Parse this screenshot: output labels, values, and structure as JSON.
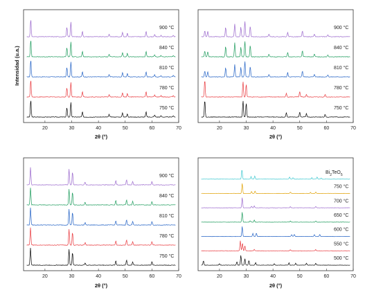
{
  "chart_data": [
    {
      "type": "line",
      "panel": "top-left",
      "xlabel": "2θ (°)",
      "ylabel": "Intensidad (u.a.)",
      "xlim": [
        12,
        70
      ],
      "xticks": [
        20,
        30,
        40,
        50,
        60,
        70
      ],
      "series": [
        {
          "name": "750 °C",
          "color": "#000000",
          "peaks": [
            [
              14.7,
              1.0
            ],
            [
              28.2,
              0.55
            ],
            [
              29.7,
              0.85
            ],
            [
              34.0,
              0.3
            ],
            [
              44.0,
              0.15
            ],
            [
              49.0,
              0.25
            ],
            [
              50.8,
              0.2
            ],
            [
              57.8,
              0.3
            ],
            [
              61.0,
              0.12
            ],
            [
              63.4,
              0.08
            ],
            [
              68.0,
              0.08
            ]
          ]
        },
        {
          "name": "780 °C",
          "color": "#e8363b",
          "peaks": [
            [
              14.7,
              1.0
            ],
            [
              28.2,
              0.55
            ],
            [
              29.7,
              0.85
            ],
            [
              34.0,
              0.3
            ],
            [
              44.0,
              0.15
            ],
            [
              49.0,
              0.25
            ],
            [
              50.8,
              0.2
            ],
            [
              57.8,
              0.3
            ],
            [
              61.0,
              0.12
            ],
            [
              63.4,
              0.08
            ],
            [
              68.0,
              0.08
            ]
          ]
        },
        {
          "name": "810 °C",
          "color": "#1f5fc4",
          "peaks": [
            [
              14.7,
              1.0
            ],
            [
              28.2,
              0.55
            ],
            [
              29.7,
              0.85
            ],
            [
              34.0,
              0.3
            ],
            [
              44.0,
              0.15
            ],
            [
              49.0,
              0.25
            ],
            [
              50.8,
              0.2
            ],
            [
              57.8,
              0.3
            ],
            [
              61.0,
              0.12
            ],
            [
              63.4,
              0.08
            ],
            [
              68.0,
              0.08
            ]
          ]
        },
        {
          "name": "840 °C",
          "color": "#1a9a5a",
          "peaks": [
            [
              14.7,
              1.0
            ],
            [
              28.2,
              0.55
            ],
            [
              29.7,
              0.85
            ],
            [
              34.0,
              0.3
            ],
            [
              44.0,
              0.15
            ],
            [
              49.0,
              0.25
            ],
            [
              50.8,
              0.2
            ],
            [
              57.8,
              0.3
            ],
            [
              61.0,
              0.12
            ],
            [
              63.4,
              0.08
            ],
            [
              68.0,
              0.08
            ]
          ]
        },
        {
          "name": "900 °C",
          "color": "#9966cc",
          "peaks": [
            [
              14.7,
              1.0
            ],
            [
              28.2,
              0.55
            ],
            [
              29.7,
              0.85
            ],
            [
              34.0,
              0.3
            ],
            [
              44.0,
              0.15
            ],
            [
              49.0,
              0.25
            ],
            [
              50.8,
              0.2
            ],
            [
              57.8,
              0.3
            ],
            [
              61.0,
              0.12
            ],
            [
              63.4,
              0.08
            ],
            [
              68.0,
              0.08
            ]
          ]
        }
      ]
    },
    {
      "type": "line",
      "panel": "top-right",
      "xlabel": "2θ (°)",
      "ylabel": "",
      "xlim": [
        12,
        70
      ],
      "xticks": [
        20,
        30,
        40,
        50,
        60,
        70
      ],
      "series": [
        {
          "name": "750 °C",
          "color": "#000000",
          "peaks": [
            [
              14.5,
              1.0
            ],
            [
              28.8,
              0.95
            ],
            [
              30.0,
              0.8
            ],
            [
              45.0,
              0.25
            ],
            [
              50.0,
              0.3
            ],
            [
              52.5,
              0.2
            ],
            [
              59.5,
              0.15
            ]
          ]
        },
        {
          "name": "780 °C",
          "color": "#e8363b",
          "peaks": [
            [
              14.5,
              1.0
            ],
            [
              28.8,
              0.9
            ],
            [
              30.0,
              0.75
            ],
            [
              45.0,
              0.2
            ],
            [
              50.0,
              0.3
            ],
            [
              52.5,
              0.15
            ],
            [
              59.5,
              0.15
            ]
          ]
        },
        {
          "name": "810 °C",
          "color": "#1f5fc4",
          "peaks": [
            [
              14.5,
              0.35
            ],
            [
              15.6,
              0.3
            ],
            [
              22.3,
              0.55
            ],
            [
              25.7,
              0.7
            ],
            [
              28.0,
              0.55
            ],
            [
              29.5,
              0.9
            ],
            [
              31.5,
              0.6
            ],
            [
              38.5,
              0.15
            ],
            [
              45.5,
              0.25
            ],
            [
              51.0,
              0.35
            ],
            [
              55.5,
              0.15
            ],
            [
              60.5,
              0.12
            ]
          ]
        },
        {
          "name": "840 °C",
          "color": "#1a9a5a",
          "peaks": [
            [
              14.5,
              0.35
            ],
            [
              15.6,
              0.3
            ],
            [
              22.3,
              0.6
            ],
            [
              25.7,
              0.8
            ],
            [
              28.0,
              0.55
            ],
            [
              29.5,
              0.9
            ],
            [
              31.5,
              0.65
            ],
            [
              38.5,
              0.15
            ],
            [
              45.5,
              0.25
            ],
            [
              51.0,
              0.35
            ],
            [
              55.5,
              0.15
            ],
            [
              60.5,
              0.12
            ]
          ]
        },
        {
          "name": "900 °C",
          "color": "#9966cc",
          "peaks": [
            [
              14.5,
              0.35
            ],
            [
              15.6,
              0.3
            ],
            [
              22.3,
              0.55
            ],
            [
              25.7,
              0.75
            ],
            [
              28.0,
              0.55
            ],
            [
              29.5,
              0.9
            ],
            [
              31.5,
              0.6
            ],
            [
              38.5,
              0.15
            ],
            [
              45.5,
              0.25
            ],
            [
              51.0,
              0.35
            ],
            [
              55.5,
              0.15
            ],
            [
              60.5,
              0.12
            ]
          ]
        }
      ]
    },
    {
      "type": "line",
      "panel": "bottom-left",
      "xlabel": "2θ (°)",
      "ylabel": "",
      "xlim": [
        12,
        70
      ],
      "xticks": [
        20,
        30,
        40,
        50,
        60,
        70
      ],
      "series": [
        {
          "name": "750 °C",
          "color": "#000000",
          "peaks": [
            [
              14.6,
              1.0
            ],
            [
              29.0,
              0.9
            ],
            [
              30.3,
              0.75
            ],
            [
              35.0,
              0.15
            ],
            [
              46.5,
              0.25
            ],
            [
              50.5,
              0.3
            ],
            [
              52.8,
              0.2
            ],
            [
              60.0,
              0.2
            ]
          ]
        },
        {
          "name": "780 °C",
          "color": "#e8363b",
          "peaks": [
            [
              14.6,
              1.0
            ],
            [
              29.0,
              0.9
            ],
            [
              30.3,
              0.75
            ],
            [
              35.0,
              0.15
            ],
            [
              46.5,
              0.25
            ],
            [
              50.5,
              0.3
            ],
            [
              52.8,
              0.2
            ],
            [
              60.0,
              0.2
            ]
          ]
        },
        {
          "name": "810 °C",
          "color": "#1f5fc4",
          "peaks": [
            [
              14.6,
              1.0
            ],
            [
              29.0,
              0.9
            ],
            [
              30.3,
              0.75
            ],
            [
              35.0,
              0.15
            ],
            [
              46.5,
              0.25
            ],
            [
              50.5,
              0.3
            ],
            [
              52.8,
              0.2
            ],
            [
              60.0,
              0.2
            ]
          ]
        },
        {
          "name": "840 °C",
          "color": "#1a9a5a",
          "peaks": [
            [
              14.6,
              1.0
            ],
            [
              29.0,
              0.9
            ],
            [
              30.3,
              0.75
            ],
            [
              35.0,
              0.15
            ],
            [
              46.5,
              0.25
            ],
            [
              50.5,
              0.3
            ],
            [
              52.8,
              0.2
            ],
            [
              60.0,
              0.2
            ]
          ]
        },
        {
          "name": "900 °C",
          "color": "#9966cc",
          "peaks": [
            [
              14.6,
              1.0
            ],
            [
              29.0,
              0.9
            ],
            [
              30.3,
              0.75
            ],
            [
              35.0,
              0.15
            ],
            [
              46.5,
              0.25
            ],
            [
              50.5,
              0.3
            ],
            [
              52.8,
              0.2
            ],
            [
              60.0,
              0.2
            ]
          ]
        }
      ]
    },
    {
      "type": "line",
      "panel": "bottom-right",
      "xlabel": "2θ (°)",
      "ylabel": "",
      "xlim": [
        12,
        70
      ],
      "xticks": [
        20,
        30,
        40,
        50,
        60,
        70
      ],
      "series": [
        {
          "name": "500 °C",
          "color": "#000000",
          "peaks": [
            [
              14.0,
              0.45
            ],
            [
              20.0,
              0.15
            ],
            [
              26.5,
              0.35
            ],
            [
              28.0,
              1.0
            ],
            [
              29.5,
              0.65
            ],
            [
              31.0,
              0.5
            ],
            [
              33.5,
              0.25
            ],
            [
              40.5,
              0.15
            ],
            [
              46.0,
              0.25
            ],
            [
              48.5,
              0.2
            ],
            [
              52.5,
              0.2
            ],
            [
              56.0,
              0.2
            ]
          ]
        },
        {
          "name": "550 °C",
          "color": "#e8363b",
          "peaks": [
            [
              27.8,
              1.0
            ],
            [
              28.6,
              0.8
            ],
            [
              29.5,
              0.5
            ],
            [
              33.0,
              0.15
            ],
            [
              46.5,
              0.12
            ],
            [
              56.0,
              0.12
            ]
          ]
        },
        {
          "name": "600 °C",
          "color": "#1f5fc4",
          "peaks": [
            [
              28.5,
              1.0
            ],
            [
              32.5,
              0.3
            ],
            [
              33.8,
              0.35
            ],
            [
              47.0,
              0.2
            ],
            [
              48.0,
              0.2
            ],
            [
              55.5,
              0.2
            ],
            [
              57.5,
              0.2
            ]
          ]
        },
        {
          "name": "650 °C",
          "color": "#1a9a5a",
          "peaks": [
            [
              28.5,
              1.0
            ],
            [
              31.5,
              0.15
            ],
            [
              33.0,
              0.2
            ],
            [
              46.5,
              0.12
            ],
            [
              56.0,
              0.12
            ]
          ]
        },
        {
          "name": "700 °C",
          "color": "#9966cc",
          "peaks": [
            [
              28.5,
              1.0
            ],
            [
              32.0,
              0.15
            ],
            [
              33.0,
              0.2
            ],
            [
              46.5,
              0.12
            ],
            [
              56.0,
              0.12
            ]
          ]
        },
        {
          "name": "750 °C",
          "color": "#e0a000",
          "peaks": [
            [
              28.5,
              1.0
            ],
            [
              32.0,
              0.2
            ],
            [
              33.3,
              0.25
            ],
            [
              46.5,
              0.15
            ],
            [
              54.0,
              0.12
            ],
            [
              56.0,
              0.15
            ]
          ]
        },
        {
          "name": "Bi2TeO5",
          "color": "#3cc8d0",
          "peaks": [
            [
              28.4,
              1.0
            ],
            [
              31.8,
              0.25
            ],
            [
              33.2,
              0.3
            ],
            [
              46.2,
              0.2
            ],
            [
              47.5,
              0.15
            ],
            [
              54.5,
              0.15
            ],
            [
              56.5,
              0.2
            ],
            [
              58.0,
              0.12
            ]
          ]
        }
      ]
    }
  ]
}
